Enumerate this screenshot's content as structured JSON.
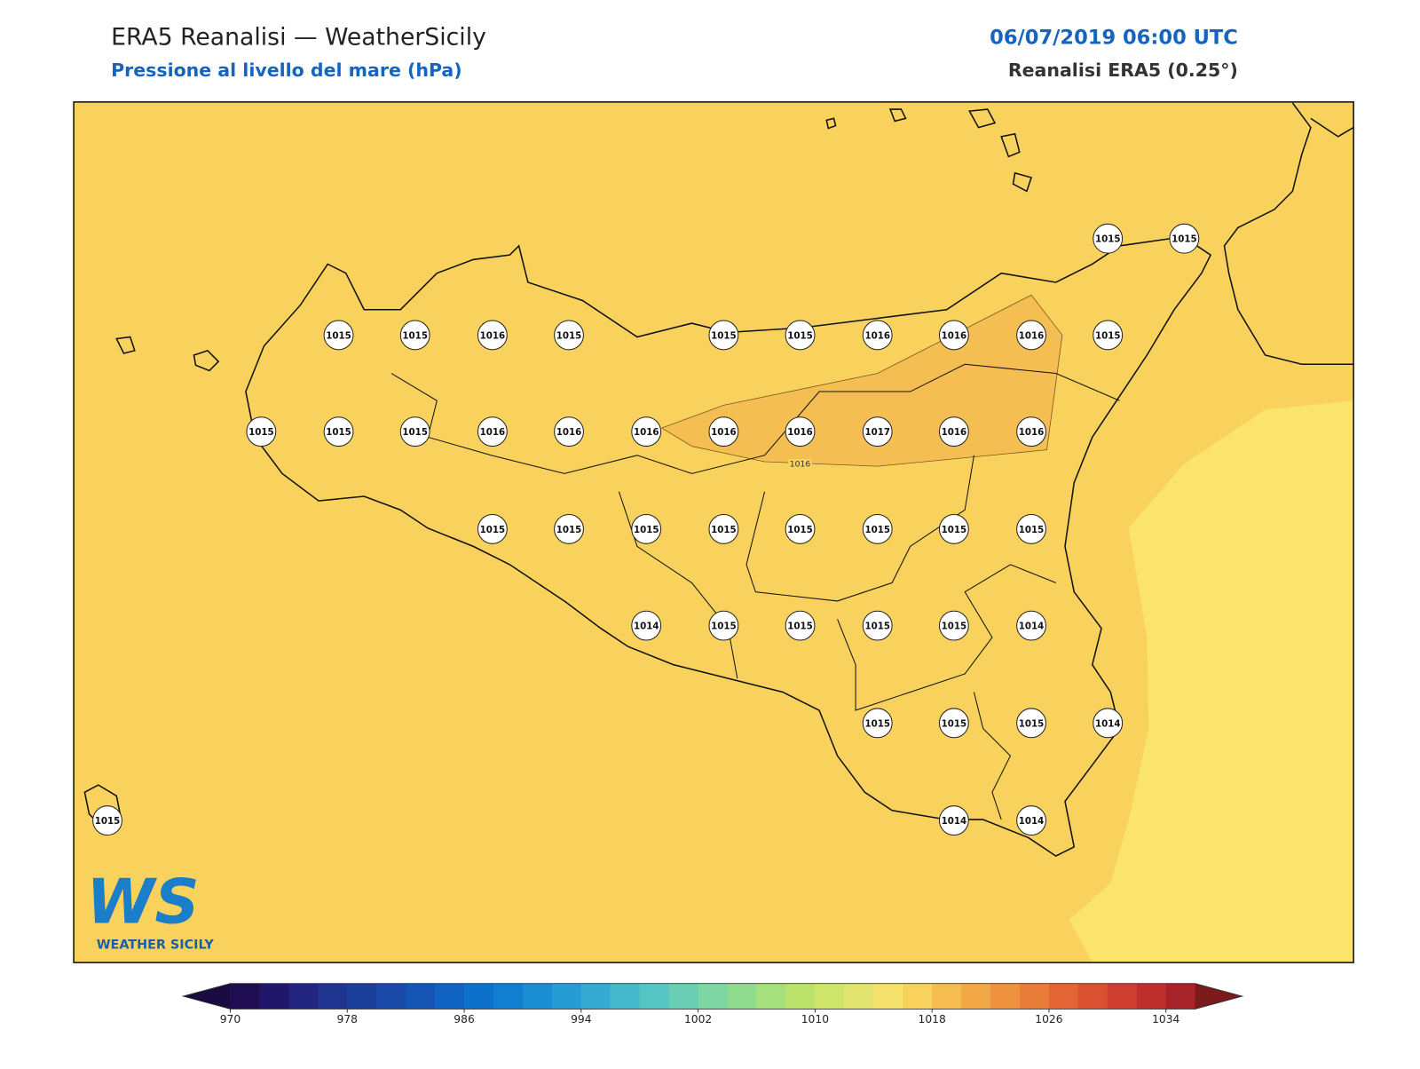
{
  "header": {
    "title": "ERA5 Reanalisi — WeatherSicily",
    "subtitle": "Pressione al livello del mare (hPa)",
    "date": "06/07/2019 06:00 UTC",
    "source": "Reanalisi ERA5 (0.25°)"
  },
  "map": {
    "stations": [
      1015,
      1015,
      1015,
      1015,
      1016,
      1015,
      1015,
      1015,
      1016,
      1016,
      1016,
      1015,
      1015,
      1015,
      1015,
      1016,
      1016,
      1016,
      1016,
      1016,
      1017,
      1016,
      1016,
      1015,
      1015,
      1015,
      1015,
      1015,
      1015,
      1015,
      1015,
      1014,
      1015,
      1015,
      1015,
      1015,
      1014,
      1015,
      1015,
      1015,
      1014,
      1015,
      1014,
      1014
    ],
    "contour_label": 1016
  },
  "logo": {
    "mark": "WS",
    "name": "WEATHER SICILY"
  },
  "colorbar": {
    "lim": [
      970,
      1036
    ],
    "ticks": [
      970,
      978,
      986,
      994,
      1002,
      1010,
      1018,
      1026,
      1034
    ],
    "colors": [
      "#1f0f52",
      "#21176a",
      "#212580",
      "#1f3590",
      "#1d3f9c",
      "#1a4aa8",
      "#1556b5",
      "#1063c1",
      "#0d71cb",
      "#117fd0",
      "#1b8dd2",
      "#279bd3",
      "#36aad1",
      "#45b8cc",
      "#56c4c2",
      "#69ceb4",
      "#7dd6a3",
      "#90dc8f",
      "#a6e07c",
      "#bbe36c",
      "#cfe56c",
      "#e2e670",
      "#f5e26c",
      "#f9d25e",
      "#f6bc50",
      "#f3a847",
      "#ef9240",
      "#ea7c3a",
      "#e36535",
      "#d95131",
      "#cd3e2e",
      "#bd2e2c",
      "#a8222a"
    ],
    "under_color": "#1a0c40",
    "over_color": "#7a1a1a"
  }
}
